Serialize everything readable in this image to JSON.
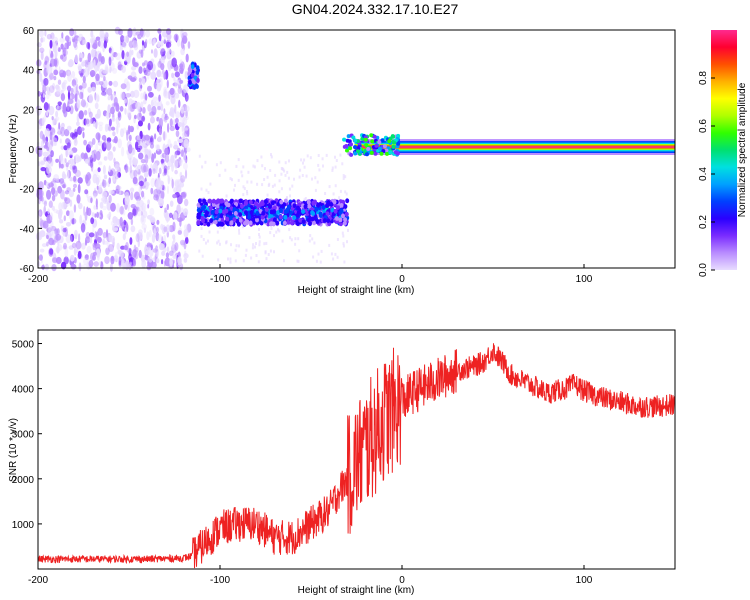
{
  "title": "GN04.2024.332.17.10.E27",
  "chart_data": [
    {
      "type": "heatmap",
      "xlabel": "Height of straight line (km)",
      "ylabel": "Frequency (Hz)",
      "xlim": [
        -200,
        150
      ],
      "ylim": [
        -60,
        60
      ],
      "xticks": [
        -200,
        -100,
        0,
        100
      ],
      "yticks": [
        -60,
        -40,
        -20,
        0,
        20,
        40,
        60
      ],
      "colorbar": {
        "label": "Normalized spectral amplitude",
        "range": [
          0,
          1
        ],
        "ticks": [
          "0.0",
          "0.2",
          "0.4",
          "0.6",
          "0.8"
        ],
        "colors": [
          "#e8dcff",
          "#b98cff",
          "#7a2cff",
          "#2a00ff",
          "#0040ff",
          "#00a0ff",
          "#00e0e0",
          "#00e070",
          "#30ff00",
          "#b0ff00",
          "#ffff00",
          "#ffb000",
          "#ff5000",
          "#ff0030",
          "#ff2a8f"
        ]
      },
      "segments": [
        {
          "name": "noise",
          "x": [
            -200,
            -117
          ],
          "freq_range": [
            -60,
            60
          ],
          "peak_amplitude": 0.15
        },
        {
          "name": "cluster",
          "x": [
            -117,
            -112
          ],
          "freq_center": 37,
          "peak_amplitude": 0.3
        },
        {
          "name": "band",
          "x": [
            -112,
            -30
          ],
          "freq_center": -32,
          "freq_width": 12,
          "peak_amplitude": 0.35
        },
        {
          "name": "line",
          "x": [
            -32,
            150
          ],
          "freq_center": 1,
          "peak_amplitude": 1.0
        }
      ],
      "grid": false
    },
    {
      "type": "line",
      "xlabel": "Height of straight line (km)",
      "ylabel": "SNR (10 * v/v)",
      "xlim": [
        -200,
        150
      ],
      "ylim": [
        0,
        5300
      ],
      "xticks": [
        -200,
        -100,
        0,
        100
      ],
      "yticks": [
        1000,
        2000,
        3000,
        4000,
        5000
      ],
      "color": "#ee2222",
      "x": [
        -200,
        -180,
        -160,
        -140,
        -120,
        -115,
        -110,
        -100,
        -90,
        -80,
        -70,
        -60,
        -50,
        -40,
        -35,
        -30,
        -25,
        -20,
        -15,
        -10,
        -5,
        0,
        5,
        10,
        15,
        20,
        25,
        30,
        40,
        45,
        50,
        55,
        60,
        70,
        80,
        90,
        95,
        100,
        110,
        120,
        130,
        140,
        150
      ],
      "y": [
        220,
        220,
        220,
        220,
        240,
        300,
        500,
        900,
        1000,
        1000,
        700,
        700,
        1000,
        1300,
        1700,
        2000,
        2400,
        2700,
        3000,
        3300,
        3500,
        3700,
        3900,
        4000,
        4100,
        4200,
        4300,
        4400,
        4500,
        4600,
        4850,
        4600,
        4300,
        4100,
        3900,
        4000,
        4100,
        3950,
        3800,
        3700,
        3600,
        3600,
        3650
      ],
      "grid": false
    }
  ]
}
